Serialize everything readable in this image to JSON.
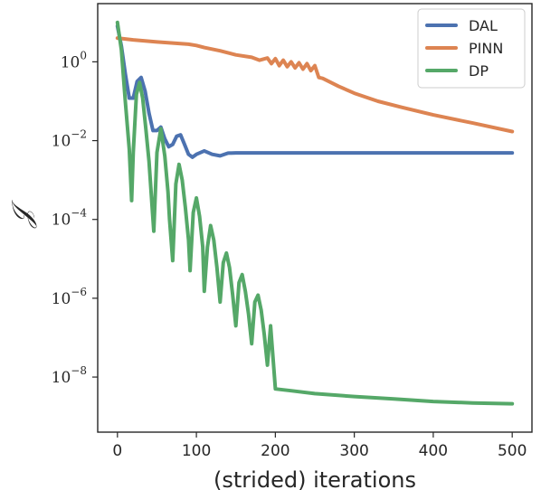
{
  "chart_data": {
    "type": "line",
    "title": "",
    "xlabel": "(strided) iterations",
    "ylabel": "𝒥",
    "yscale": "log",
    "xlim": [
      -25,
      525
    ],
    "ylim": [
      4e-10,
      30
    ],
    "xticks": [
      0,
      100,
      200,
      300,
      400,
      500
    ],
    "yticks": [
      {
        "value": 1,
        "base": "10",
        "exp": "0"
      },
      {
        "value": 0.01,
        "base": "10",
        "exp": "−2"
      },
      {
        "value": 0.0001,
        "base": "10",
        "exp": "−4"
      },
      {
        "value": 1e-06,
        "base": "10",
        "exp": "−6"
      },
      {
        "value": 1e-08,
        "base": "10",
        "exp": "−8"
      }
    ],
    "grid": false,
    "legend_position": "top-right",
    "series": [
      {
        "name": "DAL",
        "color": "#4c72b0",
        "x": [
          0,
          5,
          10,
          15,
          20,
          25,
          30,
          35,
          40,
          45,
          50,
          55,
          60,
          65,
          70,
          75,
          80,
          85,
          90,
          95,
          100,
          110,
          120,
          130,
          140,
          150,
          200,
          300,
          400,
          500
        ],
        "y": [
          8,
          2.5,
          0.5,
          0.12,
          0.12,
          0.32,
          0.4,
          0.18,
          0.05,
          0.018,
          0.018,
          0.022,
          0.011,
          0.007,
          0.008,
          0.013,
          0.014,
          0.008,
          0.0045,
          0.0038,
          0.0045,
          0.0055,
          0.0045,
          0.0041,
          0.0048,
          0.0049,
          0.0049,
          0.0049,
          0.0049,
          0.0049
        ]
      },
      {
        "name": "PINN",
        "color": "#dd8452",
        "x": [
          0,
          20,
          50,
          90,
          100,
          110,
          130,
          150,
          170,
          180,
          190,
          195,
          200,
          205,
          210,
          215,
          220,
          225,
          230,
          235,
          240,
          245,
          250,
          255,
          260,
          280,
          300,
          330,
          360,
          400,
          450,
          500
        ],
        "y": [
          4,
          3.6,
          3.2,
          2.8,
          2.6,
          2.3,
          1.9,
          1.5,
          1.3,
          1.1,
          1.25,
          0.9,
          1.2,
          0.8,
          1.1,
          0.75,
          1.0,
          0.7,
          0.95,
          0.65,
          0.9,
          0.6,
          0.8,
          0.4,
          0.38,
          0.24,
          0.16,
          0.1,
          0.07,
          0.045,
          0.028,
          0.017
        ]
      },
      {
        "name": "DP",
        "color": "#55a868",
        "x": [
          0,
          5,
          10,
          15,
          18,
          20,
          24,
          28,
          32,
          36,
          40,
          44,
          46,
          50,
          55,
          60,
          64,
          66,
          70,
          74,
          78,
          82,
          86,
          90,
          92,
          96,
          100,
          104,
          108,
          110,
          114,
          118,
          122,
          126,
          130,
          134,
          138,
          142,
          146,
          150,
          154,
          158,
          162,
          166,
          170,
          174,
          178,
          182,
          186,
          190,
          194,
          200,
          220,
          250,
          300,
          350,
          400,
          450,
          500
        ],
        "y": [
          10,
          2,
          0.1,
          0.006,
          0.0003,
          0.005,
          0.15,
          0.3,
          0.12,
          0.02,
          0.003,
          0.0002,
          5e-05,
          0.005,
          0.02,
          0.004,
          0.0005,
          0.0001,
          9e-06,
          0.0008,
          0.0025,
          0.001,
          0.0002,
          3e-05,
          5e-06,
          0.00015,
          0.00035,
          0.00012,
          2e-05,
          1.5e-06,
          2e-05,
          7e-05,
          3e-05,
          6e-06,
          8e-07,
          8e-06,
          1.4e-05,
          6e-06,
          1.2e-06,
          2e-07,
          2.5e-06,
          4e-06,
          1.5e-06,
          4e-07,
          7e-08,
          8e-07,
          1.2e-06,
          5e-07,
          1.2e-07,
          2e-08,
          2e-07,
          5e-09,
          4.5e-09,
          3.8e-09,
          3.2e-09,
          2.8e-09,
          2.4e-09,
          2.2e-09,
          2.1e-09
        ]
      }
    ]
  }
}
